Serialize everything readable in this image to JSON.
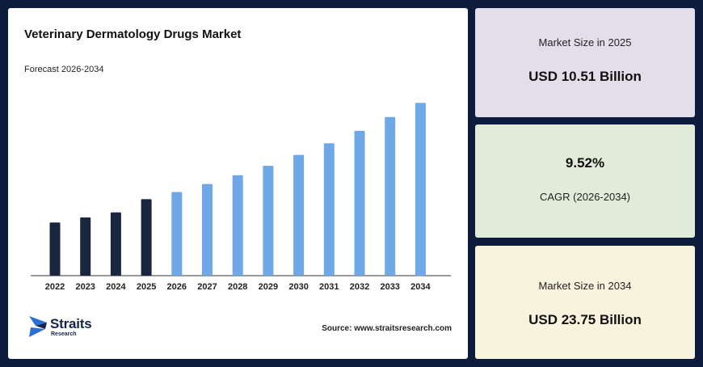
{
  "chart_data": {
    "type": "bar",
    "title": "Veterinary Dermatology Drugs Market",
    "subtitle": "Forecast 2026-2034",
    "categories": [
      "2022",
      "2023",
      "2024",
      "2025",
      "2026",
      "2027",
      "2028",
      "2029",
      "2030",
      "2031",
      "2032",
      "2033",
      "2034"
    ],
    "values": [
      7.3,
      8.0,
      8.7,
      10.51,
      11.5,
      12.6,
      13.8,
      15.1,
      16.6,
      18.2,
      19.9,
      21.8,
      23.75
    ],
    "ylim": [
      0,
      25
    ],
    "xlabel": "",
    "ylabel": "",
    "grid": false,
    "colors": {
      "historical": "#1a2540",
      "forecast": "#6fa8e6"
    },
    "historical_through": "2025"
  },
  "source_text": "Source: www.straitsresearch.com",
  "logo": {
    "name": "Straits",
    "sub": "Research"
  },
  "cards": [
    {
      "label": "Market Size in 2025",
      "value": "USD 10.51 Billion"
    },
    {
      "value": "9.52%",
      "label": "CAGR (2026-2034)"
    },
    {
      "label": "Market Size in 2034",
      "value": "USD 23.75 Billion"
    }
  ]
}
